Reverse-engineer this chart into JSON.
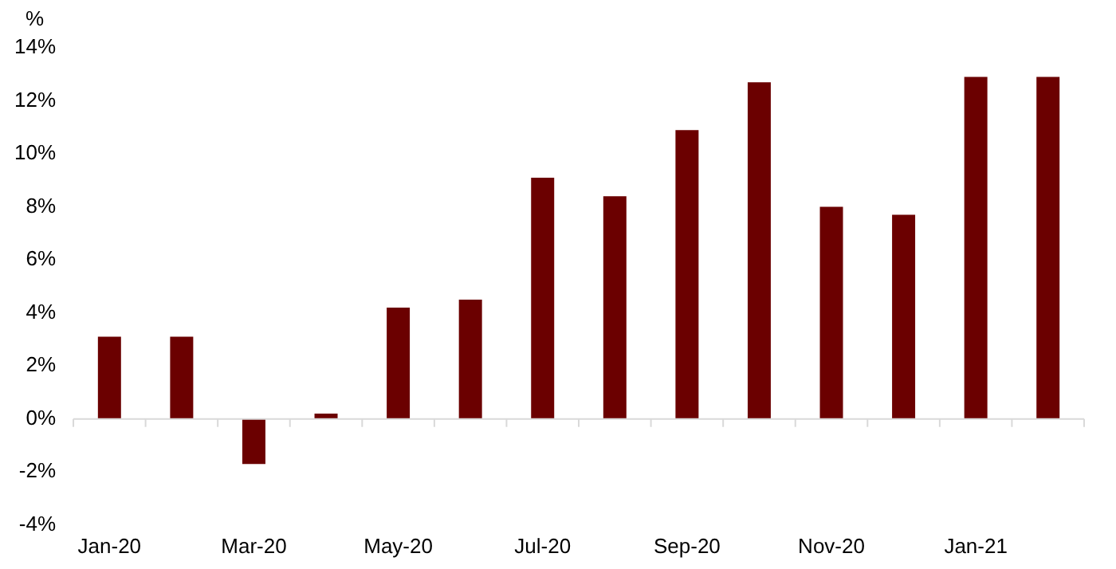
{
  "chart_data": {
    "type": "bar",
    "ylabel": "%",
    "categories": [
      "Jan-20",
      null,
      "Mar-20",
      null,
      "May-20",
      null,
      "Jul-20",
      null,
      "Sep-20",
      null,
      "Nov-20",
      null,
      "Jan-21",
      null
    ],
    "values": [
      3.1,
      3.1,
      -1.7,
      0.2,
      4.2,
      4.5,
      9.1,
      8.4,
      10.9,
      12.7,
      8.0,
      7.7,
      12.9,
      12.9
    ],
    "color": "#6b0000",
    "ylim": [
      -4,
      14
    ],
    "yticks": [
      {
        "value": -4,
        "label": "-4%"
      },
      {
        "value": -2,
        "label": "-2%"
      },
      {
        "value": 0,
        "label": "0%"
      },
      {
        "value": 2,
        "label": "2%"
      },
      {
        "value": 4,
        "label": "4%"
      },
      {
        "value": 6,
        "label": "6%"
      },
      {
        "value": 8,
        "label": "8%"
      },
      {
        "value": 10,
        "label": "10%"
      },
      {
        "value": 12,
        "label": "12%"
      },
      {
        "value": 14,
        "label": "14%"
      }
    ],
    "ref_lines": [
      {
        "axis": "y",
        "value": 0,
        "color": "#d9d9d9"
      }
    ],
    "grid": false,
    "legend": false
  }
}
